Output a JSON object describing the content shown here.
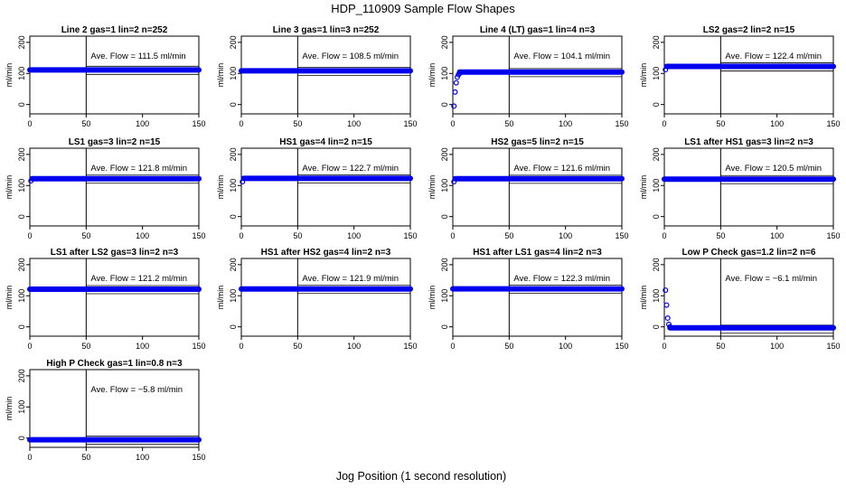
{
  "title": "HDP_110909  Sample Flow Shapes",
  "xlabel": "Jog Position (1 second resolution)",
  "point_color": "#0000ee",
  "chart_data": [
    {
      "type": "scatter",
      "title": "Line 2 gas=1 lin=2 n=252",
      "ylabel": "ml/min",
      "xlim": [
        0,
        150
      ],
      "ylim": [
        -30,
        220
      ],
      "xticks": [
        0,
        50,
        100,
        150
      ],
      "yticks": [
        0,
        100,
        200
      ],
      "annotation": "Ave. Flow =  111.5  ml/min",
      "mean": 111.5,
      "vline_x": 50,
      "segments": [
        {
          "x_start": 0,
          "x_end": 150,
          "y": 111.5
        }
      ]
    },
    {
      "type": "scatter",
      "title": "Line 3 gas=1 lin=3 n=252",
      "ylabel": "ml/min",
      "xlim": [
        0,
        150
      ],
      "ylim": [
        -30,
        220
      ],
      "xticks": [
        0,
        50,
        100,
        150
      ],
      "yticks": [
        0,
        100,
        200
      ],
      "annotation": "Ave. Flow =  108.5  ml/min",
      "mean": 108.5,
      "vline_x": 50,
      "segments": [
        {
          "x_start": 0,
          "x_end": 150,
          "y": 108.5
        }
      ]
    },
    {
      "type": "scatter",
      "title": "Line 4 (LT) gas=1 lin=4 n=3",
      "ylabel": "ml/min",
      "xlim": [
        0,
        150
      ],
      "ylim": [
        -30,
        220
      ],
      "xticks": [
        0,
        50,
        100,
        150
      ],
      "yticks": [
        0,
        100,
        200
      ],
      "annotation": "Ave. Flow =  104.1  ml/min",
      "mean": 104.1,
      "vline_x": 50,
      "points": [
        {
          "x": 1,
          "y": -5
        },
        {
          "x": 2,
          "y": 40
        },
        {
          "x": 3,
          "y": 70
        },
        {
          "x": 4,
          "y": 88
        },
        {
          "x": 5,
          "y": 96
        },
        {
          "x": 6,
          "y": 100
        }
      ],
      "segments": [
        {
          "x_start": 6,
          "x_end": 150,
          "y": 104.5
        }
      ]
    },
    {
      "type": "scatter",
      "title": "LS2 gas=2 lin=2 n=15",
      "ylabel": "ml/min",
      "xlim": [
        0,
        150
      ],
      "ylim": [
        -30,
        220
      ],
      "xticks": [
        0,
        50,
        100,
        150
      ],
      "yticks": [
        0,
        100,
        200
      ],
      "annotation": "Ave. Flow =  122.4  ml/min",
      "mean": 122.4,
      "vline_x": 50,
      "points": [
        {
          "x": 1,
          "y": 112
        }
      ],
      "segments": [
        {
          "x_start": 2,
          "x_end": 150,
          "y": 122.5
        }
      ]
    },
    {
      "type": "scatter",
      "title": "LS1 gas=3 lin=2 n=15",
      "ylabel": "ml/min",
      "xlim": [
        0,
        150
      ],
      "ylim": [
        -30,
        220
      ],
      "xticks": [
        0,
        50,
        100,
        150
      ],
      "yticks": [
        0,
        100,
        200
      ],
      "annotation": "Ave. Flow =  121.8  ml/min",
      "mean": 121.8,
      "vline_x": 50,
      "points": [
        {
          "x": 1,
          "y": 115
        }
      ],
      "segments": [
        {
          "x_start": 2,
          "x_end": 150,
          "y": 122
        }
      ]
    },
    {
      "type": "scatter",
      "title": "HS1 gas=4 lin=2 n=15",
      "ylabel": "ml/min",
      "xlim": [
        0,
        150
      ],
      "ylim": [
        -30,
        220
      ],
      "xticks": [
        0,
        50,
        100,
        150
      ],
      "yticks": [
        0,
        100,
        200
      ],
      "annotation": "Ave. Flow =  122.7  ml/min",
      "mean": 122.7,
      "vline_x": 50,
      "points": [
        {
          "x": 1,
          "y": 112
        }
      ],
      "segments": [
        {
          "x_start": 2,
          "x_end": 150,
          "y": 123
        }
      ]
    },
    {
      "type": "scatter",
      "title": "HS2 gas=5 lin=2 n=15",
      "ylabel": "ml/min",
      "xlim": [
        0,
        150
      ],
      "ylim": [
        -30,
        220
      ],
      "xticks": [
        0,
        50,
        100,
        150
      ],
      "yticks": [
        0,
        100,
        200
      ],
      "annotation": "Ave. Flow =  121.6  ml/min",
      "mean": 121.6,
      "vline_x": 50,
      "points": [
        {
          "x": 1,
          "y": 112
        }
      ],
      "segments": [
        {
          "x_start": 2,
          "x_end": 150,
          "y": 122
        }
      ]
    },
    {
      "type": "scatter",
      "title": "LS1 after HS1 gas=3 lin=2 n=3",
      "ylabel": "ml/min",
      "xlim": [
        0,
        150
      ],
      "ylim": [
        -30,
        220
      ],
      "xticks": [
        0,
        50,
        100,
        150
      ],
      "yticks": [
        0,
        100,
        200
      ],
      "annotation": "Ave. Flow =  120.5  ml/min",
      "mean": 120.5,
      "vline_x": 50,
      "segments": [
        {
          "x_start": 0,
          "x_end": 150,
          "y": 120.5
        }
      ]
    },
    {
      "type": "scatter",
      "title": "LS1 after LS2 gas=3 lin=2 n=3",
      "ylabel": "ml/min",
      "xlim": [
        0,
        150
      ],
      "ylim": [
        -30,
        220
      ],
      "xticks": [
        0,
        50,
        100,
        150
      ],
      "yticks": [
        0,
        100,
        200
      ],
      "annotation": "Ave. Flow =  121.2  ml/min",
      "mean": 121.2,
      "vline_x": 50,
      "segments": [
        {
          "x_start": 0,
          "x_end": 150,
          "y": 121.2
        }
      ]
    },
    {
      "type": "scatter",
      "title": "HS1 after HS2 gas=4 lin=2 n=3",
      "ylabel": "ml/min",
      "xlim": [
        0,
        150
      ],
      "ylim": [
        -30,
        220
      ],
      "xticks": [
        0,
        50,
        100,
        150
      ],
      "yticks": [
        0,
        100,
        200
      ],
      "annotation": "Ave. Flow =  121.9  ml/min",
      "mean": 121.9,
      "vline_x": 50,
      "segments": [
        {
          "x_start": 0,
          "x_end": 150,
          "y": 121.9
        }
      ]
    },
    {
      "type": "scatter",
      "title": "HS1 after LS1 gas=4 lin=2 n=3",
      "ylabel": "ml/min",
      "xlim": [
        0,
        150
      ],
      "ylim": [
        -30,
        220
      ],
      "xticks": [
        0,
        50,
        100,
        150
      ],
      "yticks": [
        0,
        100,
        200
      ],
      "annotation": "Ave. Flow =  122.3  ml/min",
      "mean": 122.3,
      "vline_x": 50,
      "segments": [
        {
          "x_start": 0,
          "x_end": 150,
          "y": 122.3
        }
      ]
    },
    {
      "type": "scatter",
      "title": "Low P Check gas=1.2 lin=2 n=6",
      "ylabel": "ml/min",
      "xlim": [
        0,
        150
      ],
      "ylim": [
        -30,
        220
      ],
      "xticks": [
        0,
        50,
        100,
        150
      ],
      "yticks": [
        0,
        100,
        200
      ],
      "annotation": "Ave. Flow =  −6.1  ml/min",
      "mean": -6.1,
      "vline_x": 50,
      "points": [
        {
          "x": 1,
          "y": 118
        },
        {
          "x": 2,
          "y": 70
        },
        {
          "x": 3,
          "y": 28
        },
        {
          "x": 4,
          "y": 8
        },
        {
          "x": 5,
          "y": 0
        }
      ],
      "segments": [
        {
          "x_start": 5,
          "x_end": 150,
          "y": -3
        }
      ]
    },
    {
      "type": "scatter",
      "title": "High P Check gas=1 lin=0.8 n=3",
      "ylabel": "ml/min",
      "xlim": [
        0,
        150
      ],
      "ylim": [
        -30,
        220
      ],
      "xticks": [
        0,
        50,
        100,
        150
      ],
      "yticks": [
        0,
        100,
        200
      ],
      "annotation": "Ave. Flow =  −5.8  ml/min",
      "mean": -5.8,
      "vline_x": 50,
      "segments": [
        {
          "x_start": 0,
          "x_end": 150,
          "y": -5.8
        }
      ]
    }
  ]
}
